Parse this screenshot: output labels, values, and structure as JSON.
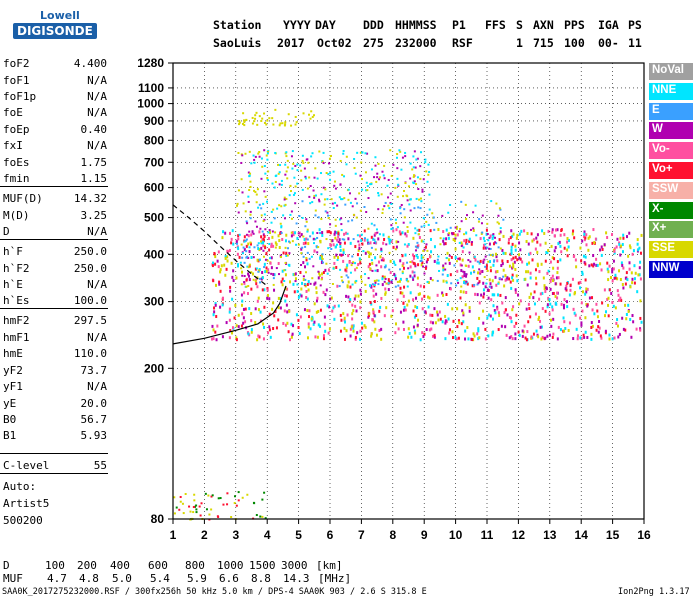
{
  "logo": {
    "line1": "Lowell",
    "line2": "DIGISONDE"
  },
  "header": {
    "labels": [
      "Station",
      "YYYY",
      "DAY",
      "DDD",
      "HHMMSS",
      "P1",
      "FFS",
      "S",
      "AXN",
      "PPS",
      "IGA",
      "PS"
    ],
    "values": [
      "SaoLuis",
      "2017",
      "Oct02",
      "275",
      "232000",
      "RSF",
      "",
      "1",
      "715",
      "100",
      "00-",
      "11"
    ]
  },
  "params": [
    {
      "name": "foF2",
      "value": "4.400"
    },
    {
      "name": "foF1",
      "value": "N/A"
    },
    {
      "name": "foF1p",
      "value": "N/A"
    },
    {
      "name": "foE",
      "value": "N/A"
    },
    {
      "name": "foEp",
      "value": "0.40"
    },
    {
      "name": "fxI",
      "value": "N/A"
    },
    {
      "name": "foEs",
      "value": "1.75"
    },
    {
      "name": "fmin",
      "value": "1.15"
    },
    {
      "name": "MUF(D)",
      "value": "14.32"
    },
    {
      "name": "M(D)",
      "value": "3.25"
    },
    {
      "name": "D",
      "value": "N/A"
    },
    {
      "name": "h`F",
      "value": "250.0"
    },
    {
      "name": "h`F2",
      "value": "250.0"
    },
    {
      "name": "h`E",
      "value": "N/A"
    },
    {
      "name": "h`Es",
      "value": "100.0"
    },
    {
      "name": "hmF2",
      "value": "297.5"
    },
    {
      "name": "hmF1",
      "value": "N/A"
    },
    {
      "name": "hmE",
      "value": "110.0"
    },
    {
      "name": "yF2",
      "value": "73.7"
    },
    {
      "name": "yF1",
      "value": "N/A"
    },
    {
      "name": "yE",
      "value": "20.0"
    },
    {
      "name": "B0",
      "value": "56.7"
    },
    {
      "name": "B1",
      "value": "5.93"
    },
    {
      "name": "C-level",
      "value": "55"
    }
  ],
  "autoscaling": {
    "line1": "Auto:",
    "line2": "Artist5",
    "line3": "500200"
  },
  "muf_table": {
    "d_label": "D",
    "d_values": [
      "100",
      "200",
      "400",
      "600",
      "800",
      "1000",
      "1500",
      "3000",
      "[km]"
    ],
    "muf_label": "MUF",
    "muf_values": [
      "4.7",
      "4.8",
      "5.0",
      "5.4",
      "5.9",
      "6.6",
      "8.8",
      "14.3",
      "[MHz]"
    ]
  },
  "footer": {
    "left": "SAA0K_2017275232000.RSF / 300fx256h 50 kHz 5.0 km / DPS-4 SAA0K 903 / 2.6 S 315.8 E",
    "right": "Ion2Png 1.3.17"
  },
  "legend": [
    {
      "label": "NoVal",
      "color": "#a0a0a0"
    },
    {
      "label": "NNE",
      "color": "#00e5ff"
    },
    {
      "label": "E",
      "color": "#3aa0ff"
    },
    {
      "label": "W",
      "color": "#b000b0"
    },
    {
      "label": "Vo-",
      "color": "#ff4fa0"
    },
    {
      "label": "Vo+",
      "color": "#ff1030"
    },
    {
      "label": "SSW",
      "color": "#f7b0a8"
    },
    {
      "label": "X-",
      "color": "#008800"
    },
    {
      "label": "X+",
      "color": "#70b050"
    },
    {
      "label": "SSE",
      "color": "#d8d800"
    },
    {
      "label": "NNW",
      "color": "#0000cc"
    }
  ],
  "chart_data": {
    "type": "scatter",
    "title": "",
    "xlabel": "",
    "ylabel": "",
    "xlim": [
      1,
      16
    ],
    "ylim": [
      80,
      1280
    ],
    "yscale": "log",
    "x_ticks": [
      "1",
      "2",
      "3",
      "4",
      "5",
      "6",
      "7",
      "8",
      "9",
      "10",
      "11",
      "12",
      "13",
      "14",
      "15",
      "16"
    ],
    "y_ticks": [
      "80",
      "200",
      "300",
      "400",
      "500",
      "600",
      "700",
      "800",
      "900",
      "1000",
      "1100",
      "1280"
    ],
    "grid": true,
    "legend_position": "right",
    "echo_regions": [
      {
        "name": "F layer trace",
        "x": [
          2.2,
          15.9
        ],
        "y": [
          240,
          470
        ],
        "colors": [
          "Vo-",
          "Vo+",
          "W",
          "NNE",
          "SSE"
        ]
      },
      {
        "name": "F upper scatter",
        "x": [
          3.0,
          11.5
        ],
        "y": [
          330,
          560
        ],
        "colors": [
          "W",
          "NNE",
          "SSE",
          "E"
        ]
      },
      {
        "name": "second hop",
        "x": [
          3.0,
          9.2
        ],
        "y": [
          560,
          760
        ],
        "colors": [
          "SSE",
          "W",
          "NNE"
        ]
      },
      {
        "name": "third hop",
        "x": [
          3.0,
          5.5
        ],
        "y": [
          880,
          980
        ],
        "colors": [
          "SSE"
        ]
      },
      {
        "name": "Es layer",
        "x": [
          1.0,
          4.0
        ],
        "y": [
          80,
          95
        ],
        "colors": [
          "Vo+",
          "SSE",
          "X-"
        ]
      }
    ],
    "model_curve_solid": [
      [
        1.0,
        232
      ],
      [
        2.0,
        240
      ],
      [
        3.0,
        252
      ],
      [
        3.7,
        262
      ],
      [
        4.2,
        280
      ],
      [
        4.4,
        297
      ],
      [
        4.6,
        330
      ]
    ],
    "model_curve_dashed": [
      [
        1.0,
        540
      ],
      [
        1.5,
        500
      ],
      [
        2.0,
        460
      ],
      [
        2.5,
        420
      ],
      [
        3.0,
        385
      ],
      [
        3.5,
        355
      ],
      [
        4.0,
        330
      ]
    ]
  }
}
